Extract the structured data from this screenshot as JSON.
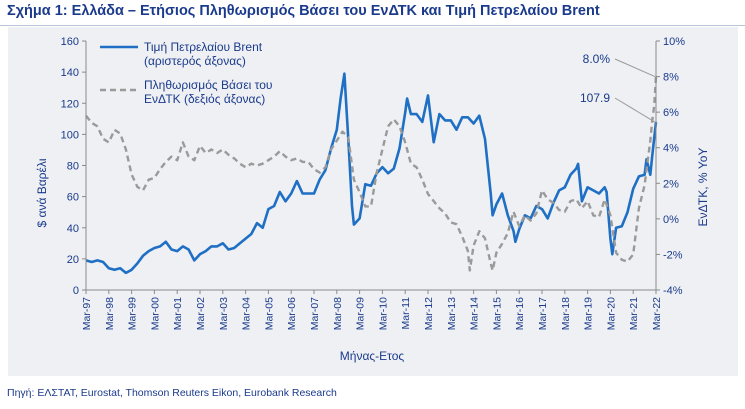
{
  "page": {
    "title": "Σχήμα 1: Ελλάδα – Ετήσιος Πληθωρισμός Βάσει του ΕνΔΤΚ και Τιμή Πετρελαίου Brent",
    "source": "Πηγή: ΕΛΣΤΑΤ, Eurostat, Thomson Reuters Eikon, Eurobank Research"
  },
  "chart_data": {
    "type": "line",
    "xlabel": "Μήνας-Ετος",
    "ylabel_left": "$ ανά Βαρέλι",
    "ylabel_right": "ΕνΔΤΚ, % YoY",
    "ylim_left": [
      0,
      160
    ],
    "ylim_right": [
      -4,
      10
    ],
    "yticks_left": [
      "0",
      "20",
      "40",
      "60",
      "80",
      "100",
      "120",
      "140",
      "160"
    ],
    "yticks_right": [
      "-4%",
      "-2%",
      "0%",
      "2%",
      "4%",
      "6%",
      "8%",
      "10%"
    ],
    "xticks": [
      "Mar-97",
      "Mar-98",
      "Mar-99",
      "Mar-00",
      "Mar-01",
      "Mar-02",
      "Mar-03",
      "Mar-04",
      "Mar-05",
      "Mar-06",
      "Mar-07",
      "Mar-08",
      "Mar-09",
      "Mar-10",
      "Mar-11",
      "Mar-12",
      "Mar-13",
      "Mar-14",
      "Mar-15",
      "Mar-16",
      "Mar-17",
      "Mar-18",
      "Mar-19",
      "Mar-20",
      "Mar-21",
      "Mar-22"
    ],
    "x_start": "1997-03",
    "grid": false,
    "legend_position": "top-left",
    "annotations": [
      {
        "text": "8.0%",
        "series": "hicp",
        "date": "2022-03",
        "value": 8.0
      },
      {
        "text": "107.9",
        "series": "brent",
        "date": "2022-03",
        "value": 107.9
      }
    ],
    "series": [
      {
        "id": "brent",
        "name": "Τιμή Πετρελαίου Brent\n(αριστερός άξονας)",
        "axis": "left",
        "color": "#1f6fc5",
        "style": "solid",
        "points": [
          [
            "1997-03",
            19
          ],
          [
            "1997-06",
            18
          ],
          [
            "1997-09",
            19
          ],
          [
            "1997-12",
            18
          ],
          [
            "1998-03",
            14
          ],
          [
            "1998-06",
            13
          ],
          [
            "1998-09",
            14
          ],
          [
            "1998-12",
            11
          ],
          [
            "1999-03",
            13
          ],
          [
            "1999-06",
            17
          ],
          [
            "1999-09",
            22
          ],
          [
            "1999-12",
            25
          ],
          [
            "2000-03",
            27
          ],
          [
            "2000-06",
            28
          ],
          [
            "2000-09",
            31
          ],
          [
            "2000-12",
            26
          ],
          [
            "2001-03",
            25
          ],
          [
            "2001-06",
            28
          ],
          [
            "2001-09",
            26
          ],
          [
            "2001-12",
            19
          ],
          [
            "2002-03",
            23
          ],
          [
            "2002-06",
            25
          ],
          [
            "2002-09",
            28
          ],
          [
            "2002-12",
            28
          ],
          [
            "2003-03",
            30
          ],
          [
            "2003-06",
            26
          ],
          [
            "2003-09",
            27
          ],
          [
            "2003-12",
            30
          ],
          [
            "2004-03",
            33
          ],
          [
            "2004-06",
            36
          ],
          [
            "2004-09",
            43
          ],
          [
            "2004-12",
            40
          ],
          [
            "2005-03",
            52
          ],
          [
            "2005-06",
            54
          ],
          [
            "2005-09",
            63
          ],
          [
            "2005-12",
            57
          ],
          [
            "2006-03",
            62
          ],
          [
            "2006-06",
            70
          ],
          [
            "2006-09",
            62
          ],
          [
            "2006-12",
            62
          ],
          [
            "2007-03",
            62
          ],
          [
            "2007-06",
            71
          ],
          [
            "2007-09",
            77
          ],
          [
            "2007-12",
            91
          ],
          [
            "2008-03",
            103
          ],
          [
            "2008-05",
            123
          ],
          [
            "2008-07",
            139
          ],
          [
            "2008-09",
            98
          ],
          [
            "2008-11",
            54
          ],
          [
            "2008-12",
            42
          ],
          [
            "2009-03",
            46
          ],
          [
            "2009-06",
            68
          ],
          [
            "2009-09",
            67
          ],
          [
            "2009-12",
            75
          ],
          [
            "2010-03",
            79
          ],
          [
            "2010-06",
            75
          ],
          [
            "2010-09",
            78
          ],
          [
            "2010-12",
            91
          ],
          [
            "2011-03",
            114
          ],
          [
            "2011-04",
            123
          ],
          [
            "2011-06",
            113
          ],
          [
            "2011-09",
            113
          ],
          [
            "2011-12",
            108
          ],
          [
            "2012-03",
            125
          ],
          [
            "2012-06",
            95
          ],
          [
            "2012-09",
            113
          ],
          [
            "2012-12",
            109
          ],
          [
            "2013-03",
            109
          ],
          [
            "2013-06",
            103
          ],
          [
            "2013-09",
            111
          ],
          [
            "2013-12",
            111
          ],
          [
            "2014-03",
            107
          ],
          [
            "2014-06",
            112
          ],
          [
            "2014-09",
            97
          ],
          [
            "2014-12",
            62
          ],
          [
            "2015-01",
            48
          ],
          [
            "2015-03",
            55
          ],
          [
            "2015-06",
            62
          ],
          [
            "2015-09",
            48
          ],
          [
            "2015-12",
            38
          ],
          [
            "2016-01",
            31
          ],
          [
            "2016-03",
            39
          ],
          [
            "2016-06",
            48
          ],
          [
            "2016-09",
            46
          ],
          [
            "2016-12",
            54
          ],
          [
            "2017-03",
            52
          ],
          [
            "2017-06",
            46
          ],
          [
            "2017-09",
            56
          ],
          [
            "2017-12",
            64
          ],
          [
            "2018-03",
            66
          ],
          [
            "2018-06",
            74
          ],
          [
            "2018-09",
            78
          ],
          [
            "2018-10",
            81
          ],
          [
            "2018-12",
            57
          ],
          [
            "2019-03",
            66
          ],
          [
            "2019-06",
            64
          ],
          [
            "2019-09",
            62
          ],
          [
            "2019-12",
            66
          ],
          [
            "2020-01",
            63
          ],
          [
            "2020-03",
            33
          ],
          [
            "2020-04",
            23
          ],
          [
            "2020-06",
            40
          ],
          [
            "2020-09",
            41
          ],
          [
            "2020-12",
            50
          ],
          [
            "2021-03",
            65
          ],
          [
            "2021-06",
            73
          ],
          [
            "2021-09",
            74
          ],
          [
            "2021-10",
            84
          ],
          [
            "2021-12",
            74
          ],
          [
            "2022-01",
            86
          ],
          [
            "2022-02",
            97
          ],
          [
            "2022-03",
            107.9
          ]
        ]
      },
      {
        "id": "hicp",
        "name": "Πληθωρισμός Βάσει του\nΕνΔΤΚ (δεξιός άξονας)",
        "axis": "right",
        "color": "#9a9a9a",
        "style": "dashed",
        "points": [
          [
            "1997-03",
            5.8
          ],
          [
            "1997-06",
            5.4
          ],
          [
            "1997-09",
            5.2
          ],
          [
            "1997-12",
            4.5
          ],
          [
            "1998-03",
            4.3
          ],
          [
            "1998-06",
            5.0
          ],
          [
            "1998-09",
            4.8
          ],
          [
            "1998-12",
            3.9
          ],
          [
            "1999-03",
            2.5
          ],
          [
            "1999-06",
            1.8
          ],
          [
            "1999-09",
            1.6
          ],
          [
            "1999-12",
            2.2
          ],
          [
            "2000-03",
            2.3
          ],
          [
            "2000-06",
            2.8
          ],
          [
            "2000-09",
            3.2
          ],
          [
            "2000-12",
            3.5
          ],
          [
            "2001-03",
            3.3
          ],
          [
            "2001-06",
            4.3
          ],
          [
            "2001-09",
            3.5
          ],
          [
            "2001-12",
            3.3
          ],
          [
            "2002-03",
            4.1
          ],
          [
            "2002-06",
            3.7
          ],
          [
            "2002-09",
            3.9
          ],
          [
            "2002-12",
            3.7
          ],
          [
            "2003-03",
            3.9
          ],
          [
            "2003-06",
            3.6
          ],
          [
            "2003-09",
            3.4
          ],
          [
            "2003-12",
            3.1
          ],
          [
            "2004-03",
            2.9
          ],
          [
            "2004-06",
            3.1
          ],
          [
            "2004-09",
            3.0
          ],
          [
            "2004-12",
            3.1
          ],
          [
            "2005-03",
            3.3
          ],
          [
            "2005-06",
            3.5
          ],
          [
            "2005-09",
            3.8
          ],
          [
            "2005-12",
            3.5
          ],
          [
            "2006-03",
            3.3
          ],
          [
            "2006-06",
            3.4
          ],
          [
            "2006-09",
            3.2
          ],
          [
            "2006-12",
            3.2
          ],
          [
            "2007-03",
            2.8
          ],
          [
            "2007-06",
            2.6
          ],
          [
            "2007-09",
            2.9
          ],
          [
            "2007-12",
            3.9
          ],
          [
            "2008-03",
            4.4
          ],
          [
            "2008-06",
            4.9
          ],
          [
            "2008-09",
            4.6
          ],
          [
            "2008-12",
            2.2
          ],
          [
            "2009-03",
            1.5
          ],
          [
            "2009-06",
            0.7
          ],
          [
            "2009-09",
            0.7
          ],
          [
            "2009-12",
            2.6
          ],
          [
            "2010-03",
            3.9
          ],
          [
            "2010-06",
            5.2
          ],
          [
            "2010-09",
            5.6
          ],
          [
            "2010-12",
            5.2
          ],
          [
            "2011-03",
            4.3
          ],
          [
            "2011-06",
            3.1
          ],
          [
            "2011-09",
            2.9
          ],
          [
            "2011-12",
            2.2
          ],
          [
            "2012-03",
            1.4
          ],
          [
            "2012-06",
            1.0
          ],
          [
            "2012-09",
            0.6
          ],
          [
            "2012-12",
            0.3
          ],
          [
            "2013-03",
            -0.2
          ],
          [
            "2013-06",
            -0.3
          ],
          [
            "2013-09",
            -1.0
          ],
          [
            "2013-12",
            -1.8
          ],
          [
            "2014-01",
            -2.9
          ],
          [
            "2014-03",
            -1.5
          ],
          [
            "2014-06",
            -0.7
          ],
          [
            "2014-09",
            -1.1
          ],
          [
            "2014-12",
            -2.5
          ],
          [
            "2015-01",
            -2.9
          ],
          [
            "2015-03",
            -1.9
          ],
          [
            "2015-06",
            -1.4
          ],
          [
            "2015-09",
            -0.8
          ],
          [
            "2015-12",
            0.4
          ],
          [
            "2016-03",
            -0.4
          ],
          [
            "2016-06",
            0.2
          ],
          [
            "2016-09",
            -0.1
          ],
          [
            "2016-12",
            0.3
          ],
          [
            "2017-03",
            1.6
          ],
          [
            "2017-06",
            1.1
          ],
          [
            "2017-09",
            0.9
          ],
          [
            "2017-12",
            0.5
          ],
          [
            "2018-03",
            0.4
          ],
          [
            "2018-06",
            1.0
          ],
          [
            "2018-09",
            1.1
          ],
          [
            "2018-12",
            0.6
          ],
          [
            "2019-03",
            1.0
          ],
          [
            "2019-06",
            0.2
          ],
          [
            "2019-09",
            0.1
          ],
          [
            "2019-12",
            1.1
          ],
          [
            "2020-03",
            0.2
          ],
          [
            "2020-06",
            -1.9
          ],
          [
            "2020-09",
            -2.3
          ],
          [
            "2020-12",
            -2.4
          ],
          [
            "2021-03",
            -2.0
          ],
          [
            "2021-06",
            0.6
          ],
          [
            "2021-09",
            1.9
          ],
          [
            "2021-12",
            4.4
          ],
          [
            "2022-01",
            5.5
          ],
          [
            "2022-02",
            6.3
          ],
          [
            "2022-03",
            8.0
          ]
        ]
      }
    ]
  }
}
